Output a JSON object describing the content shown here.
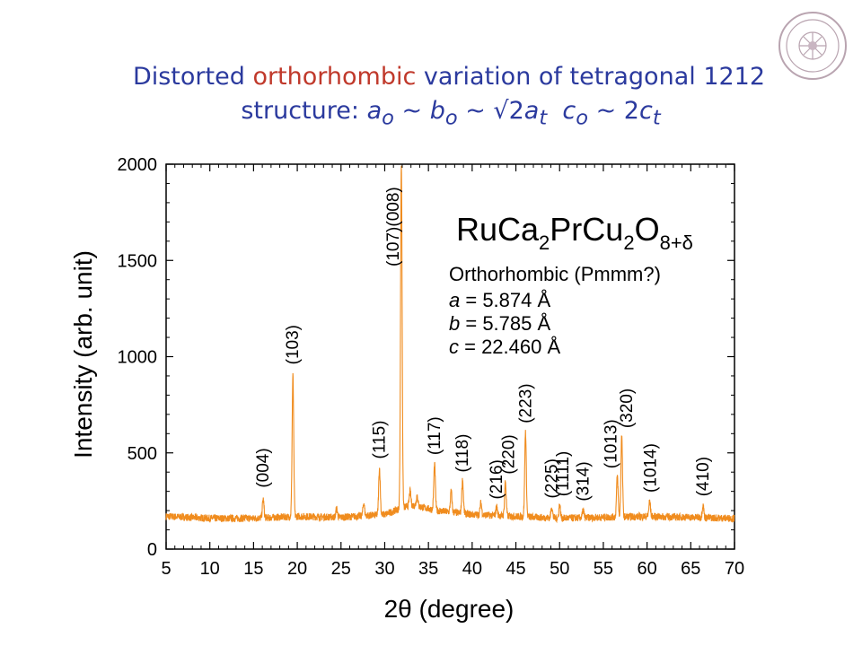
{
  "slide": {
    "title_line1": {
      "pre": "Distorted ",
      "highlight": "orthorhombic",
      "post": " variation of tetragonal 1212"
    },
    "title_line2": {
      "pre": "structure: ",
      "a": "a",
      "o1": "o",
      "sep1": " ~ ",
      "b": "b",
      "o2": "o",
      "sep2": " ~ ",
      "sqrt": "√2",
      "at": "a",
      "t1": "t",
      "gap": "  ",
      "c": "c",
      "o3": "o",
      "sep3": " ~ 2",
      "ct": "c",
      "t2": "t"
    },
    "colors": {
      "title": "#2b3a9e",
      "highlight": "#c0392b",
      "trace": "#f08c1e"
    },
    "logo_icon": "university-seal-icon"
  },
  "chart_data": {
    "type": "line",
    "xlabel": "2θ (degree)",
    "ylabel": "Intensity (arb. unit)",
    "xlim": [
      5,
      70
    ],
    "ylim": [
      0,
      2000
    ],
    "xticks": [
      "5",
      "10",
      "15",
      "20",
      "25",
      "30",
      "35",
      "40",
      "45",
      "50",
      "55",
      "60",
      "65",
      "70"
    ],
    "yticks": [
      "0",
      "500",
      "1000",
      "1500",
      "2000"
    ],
    "grid": false,
    "baseline": [
      [
        5,
        170
      ],
      [
        10,
        160
      ],
      [
        15,
        160
      ],
      [
        20,
        170
      ],
      [
        25,
        165
      ],
      [
        30,
        180
      ],
      [
        33,
        230
      ],
      [
        36,
        200
      ],
      [
        40,
        180
      ],
      [
        45,
        170
      ],
      [
        50,
        160
      ],
      [
        55,
        165
      ],
      [
        60,
        170
      ],
      [
        65,
        165
      ],
      [
        70,
        160
      ]
    ],
    "peaks": [
      {
        "x": 16.1,
        "y": 260
      },
      {
        "x": 19.5,
        "y": 900
      },
      {
        "x": 24.5,
        "y": 210
      },
      {
        "x": 27.6,
        "y": 240
      },
      {
        "x": 29.4,
        "y": 420
      },
      {
        "x": 31.9,
        "y": 2000
      },
      {
        "x": 32.9,
        "y": 300
      },
      {
        "x": 33.7,
        "y": 280
      },
      {
        "x": 35.7,
        "y": 440
      },
      {
        "x": 37.6,
        "y": 300
      },
      {
        "x": 38.9,
        "y": 360
      },
      {
        "x": 41.0,
        "y": 240
      },
      {
        "x": 42.8,
        "y": 220
      },
      {
        "x": 43.8,
        "y": 350
      },
      {
        "x": 46.1,
        "y": 610
      },
      {
        "x": 49.1,
        "y": 220
      },
      {
        "x": 50.0,
        "y": 230
      },
      {
        "x": 52.7,
        "y": 200
      },
      {
        "x": 56.6,
        "y": 380
      },
      {
        "x": 57.1,
        "y": 590
      },
      {
        "x": 60.3,
        "y": 250
      },
      {
        "x": 66.4,
        "y": 230
      }
    ],
    "annotations": [
      {
        "label": "(004)",
        "x": 16.1,
        "y": 300
      },
      {
        "label": "(103)",
        "x": 19.5,
        "y": 940
      },
      {
        "label": "(115)",
        "x": 29.4,
        "y": 450
      },
      {
        "label": "(107)(008)",
        "x": 31.0,
        "y": 1450
      },
      {
        "label": "(117)",
        "x": 35.7,
        "y": 470
      },
      {
        "label": "(118)",
        "x": 38.9,
        "y": 380
      },
      {
        "label": "(216)",
        "x": 42.8,
        "y": 240
      },
      {
        "label": "(220)",
        "x": 44.2,
        "y": 370
      },
      {
        "label": "(223)",
        "x": 46.1,
        "y": 635
      },
      {
        "label": "(225)",
        "x": 49.1,
        "y": 245
      },
      {
        "label": "(1111)",
        "x": 50.4,
        "y": 255
      },
      {
        "label": "(314)",
        "x": 52.7,
        "y": 230
      },
      {
        "label": "(1013)",
        "x": 55.9,
        "y": 400
      },
      {
        "label": "(320)",
        "x": 57.7,
        "y": 610
      },
      {
        "label": "(1014)",
        "x": 60.4,
        "y": 275
      },
      {
        "label": "(410)",
        "x": 66.4,
        "y": 255
      }
    ],
    "compound": {
      "base": "RuCa",
      "sub1": "2",
      "mid": "PrCu",
      "sub2": "2",
      "o": "O",
      "sub3": "8+δ"
    },
    "lattice": {
      "header": "Orthorhombic (Pmmm?)",
      "rows": [
        {
          "var": "a",
          "value": " = 5.874 Å"
        },
        {
          "var": "b",
          "value": " = 5.785 Å"
        },
        {
          "var": "c",
          "value": " = 22.460 Å"
        }
      ]
    }
  }
}
